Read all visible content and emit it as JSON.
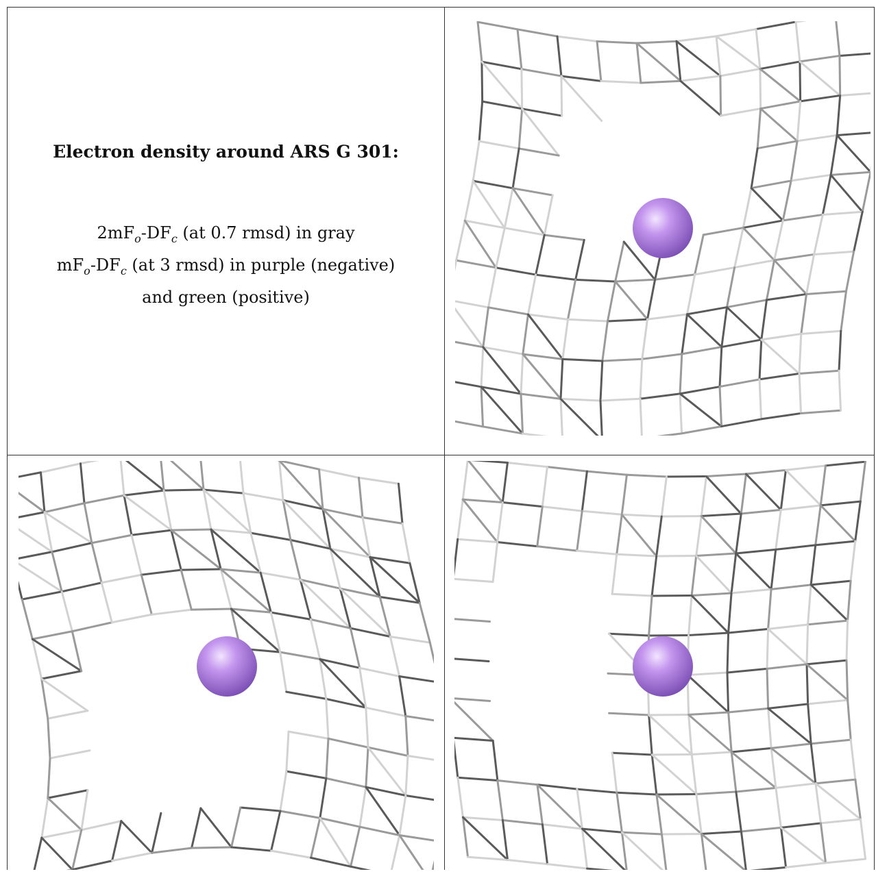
{
  "caption": {
    "title": "Electron density around ARS G 301:",
    "line1_prefix": "2mF",
    "line1_sub1": "o",
    "line1_mid": "-DF",
    "line1_sub2": "c",
    "line1_suffix": " (at 0.7 rmsd) in gray",
    "line2_prefix": "mF",
    "line2_sub1": "o",
    "line2_mid": "-DF",
    "line2_sub2": "c",
    "line2_suffix": " (at 3 rmsd) in purple (negative)",
    "line3": "and green (positive)"
  },
  "colors": {
    "mesh": "#9a9a9a",
    "mesh_dark": "#5a5a5a",
    "mesh_light": "#d2d2d2",
    "atom": "#b07fe0",
    "atom_highlight": "#f3e6ff",
    "atom_shadow": "#7a4db3"
  },
  "panels": [
    {
      "id": "view-1",
      "label": ""
    },
    {
      "id": "view-2",
      "label": ""
    },
    {
      "id": "view-3",
      "label": ""
    }
  ]
}
